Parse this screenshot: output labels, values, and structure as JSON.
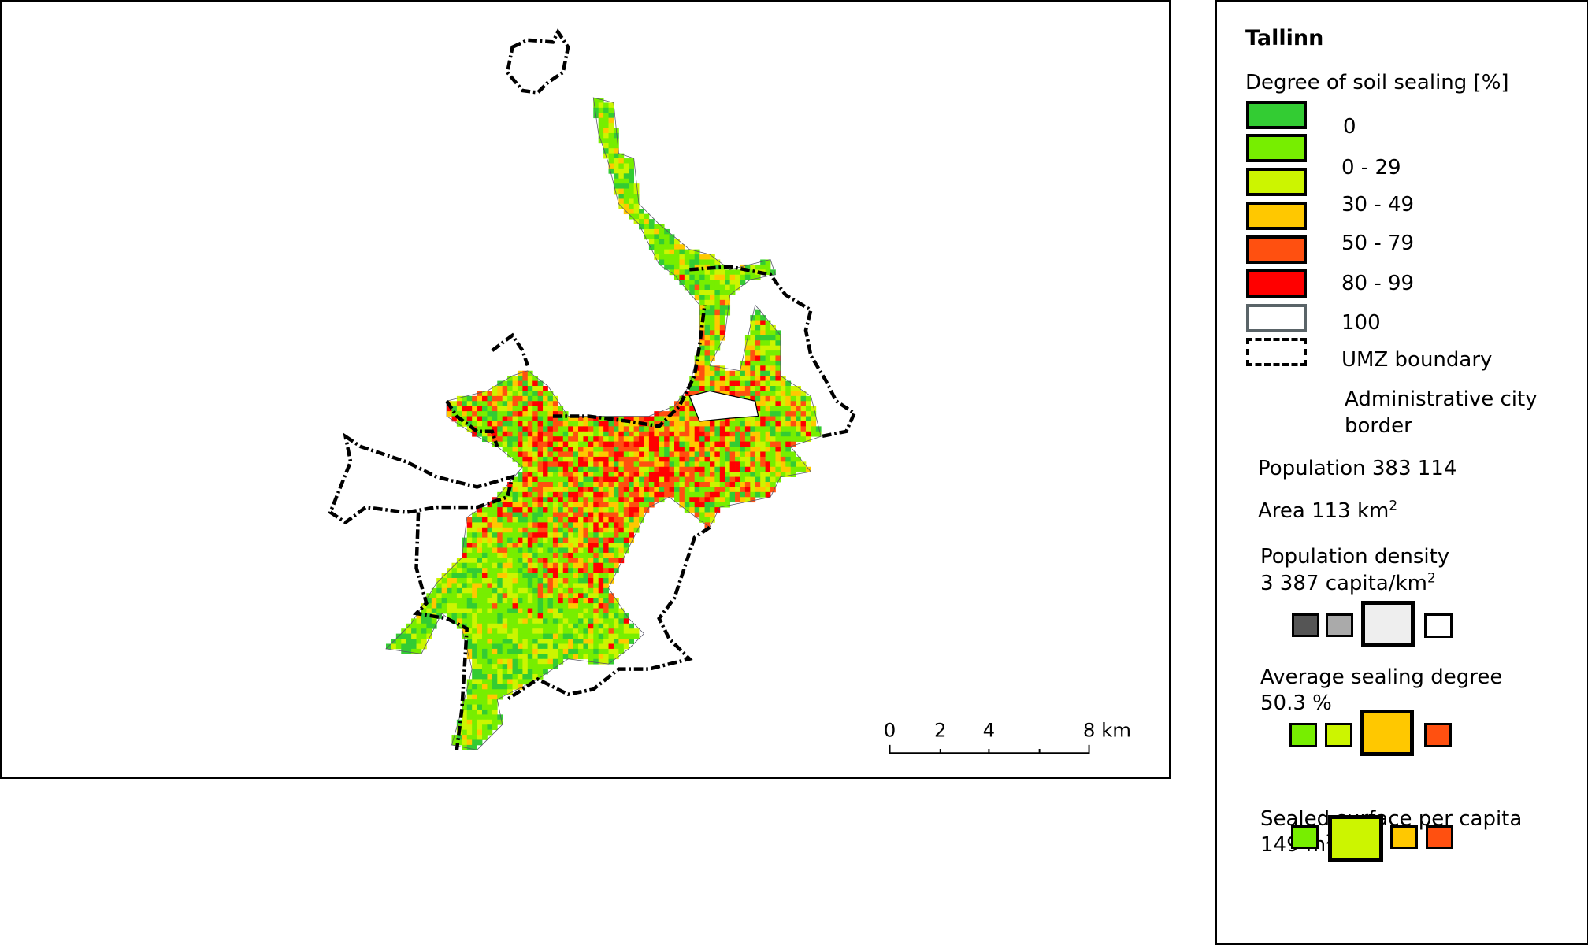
{
  "map": {
    "scale_bar": {
      "labels": [
        "0",
        "2",
        "4",
        "8 km"
      ]
    },
    "colors": {
      "0": "#33cc33",
      "0-29": "#77ee00",
      "30-49": "#ccf500",
      "50-79": "#ffc800",
      "80-99": "#ff5010",
      "100": "#ff0000",
      "admin_border": "#000000"
    }
  },
  "legend": {
    "city": "Tallinn",
    "heading": "Degree of soil sealing [%]",
    "classes": [
      {
        "label": "0",
        "color": "#33cc33"
      },
      {
        "label": "0 - 29",
        "color": "#77ee00"
      },
      {
        "label": "30 - 49",
        "color": "#ccf500"
      },
      {
        "label": "50 - 79",
        "color": "#ffc800"
      },
      {
        "label": "80 - 99",
        "color": "#ff5010"
      },
      {
        "label": "100",
        "color": "#ff0000"
      }
    ],
    "umz_label": "UMZ boundary",
    "admin_label_1": "Administrative city",
    "admin_label_2": "border",
    "population": "Population 383 114",
    "area": "Area 113 km",
    "area_sup": "2",
    "density_label": "Population density",
    "density_value": "3 387 capita/km",
    "density_sup": "2",
    "avg_label": "Average sealing degree",
    "avg_value": "50.3 %",
    "sealed_label": "Sealed surface per capita",
    "sealed_value": "149 m",
    "sealed_sup": "2"
  }
}
